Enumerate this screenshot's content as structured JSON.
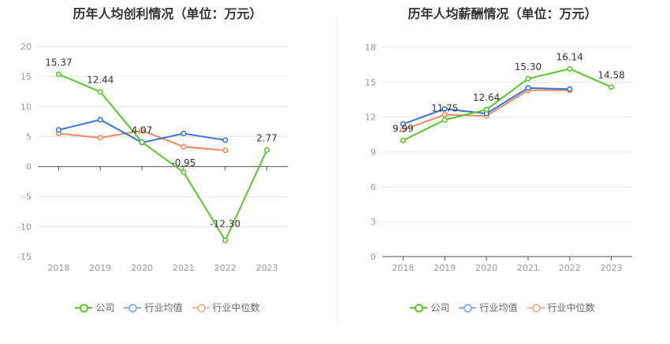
{
  "chart_data": [
    {
      "type": "line",
      "title": "历年人均创利情况（单位：万元）",
      "categories": [
        "2018",
        "2019",
        "2020",
        "2021",
        "2022",
        "2023"
      ],
      "ylim": [
        -15,
        20
      ],
      "yticks": [
        "20",
        "15",
        "10",
        "5",
        "0",
        "-5",
        "-10",
        "-15"
      ],
      "ytick_values": [
        20,
        15,
        10,
        5,
        0,
        -5,
        -10,
        -15
      ],
      "grid": true,
      "legend_position": "bottom",
      "series": [
        {
          "name": "公司",
          "color": "#5bc72a",
          "values": [
            15.37,
            12.44,
            4.07,
            -0.95,
            -12.3,
            2.77
          ],
          "labels": [
            "15.37",
            "12.44",
            "4.07",
            "-0.95",
            "-12.30",
            "2.77"
          ]
        },
        {
          "name": "行业均值",
          "color": "#3b74d9",
          "values": [
            6.1,
            7.8,
            4.0,
            5.5,
            4.4,
            null
          ],
          "labels": []
        },
        {
          "name": "行业中位数",
          "color": "#f08a5d",
          "values": [
            5.5,
            4.8,
            6.0,
            3.3,
            2.7,
            null
          ],
          "labels": []
        }
      ]
    },
    {
      "type": "line",
      "title": "历年人均薪酬情况（单位：万元）",
      "categories": [
        "2018",
        "2019",
        "2020",
        "2021",
        "2022",
        "2023"
      ],
      "ylim": [
        0,
        18
      ],
      "yticks": [
        "18",
        "15",
        "12",
        "9",
        "6",
        "3",
        "0"
      ],
      "ytick_values": [
        18,
        15,
        12,
        9,
        6,
        3,
        0
      ],
      "grid": true,
      "legend_position": "bottom",
      "series": [
        {
          "name": "公司",
          "color": "#5bc72a",
          "values": [
            9.99,
            11.75,
            12.64,
            15.3,
            16.14,
            14.58
          ],
          "labels": [
            "9.99",
            "11.75",
            "12.64",
            "15.30",
            "16.14",
            "14.58"
          ]
        },
        {
          "name": "行业均值",
          "color": "#3b74d9",
          "values": [
            11.4,
            12.7,
            12.3,
            14.5,
            14.4,
            null
          ],
          "labels": []
        },
        {
          "name": "行业中位数",
          "color": "#f08a5d",
          "values": [
            10.9,
            12.2,
            12.1,
            14.3,
            14.3,
            null
          ],
          "labels": []
        }
      ]
    }
  ],
  "legend": {
    "items": [
      {
        "label": "公司",
        "color": "#5bc72a"
      },
      {
        "label": "行业均值",
        "color": "#8fb0e6"
      },
      {
        "label": "行业中位数",
        "color": "#f5b49a"
      }
    ]
  }
}
